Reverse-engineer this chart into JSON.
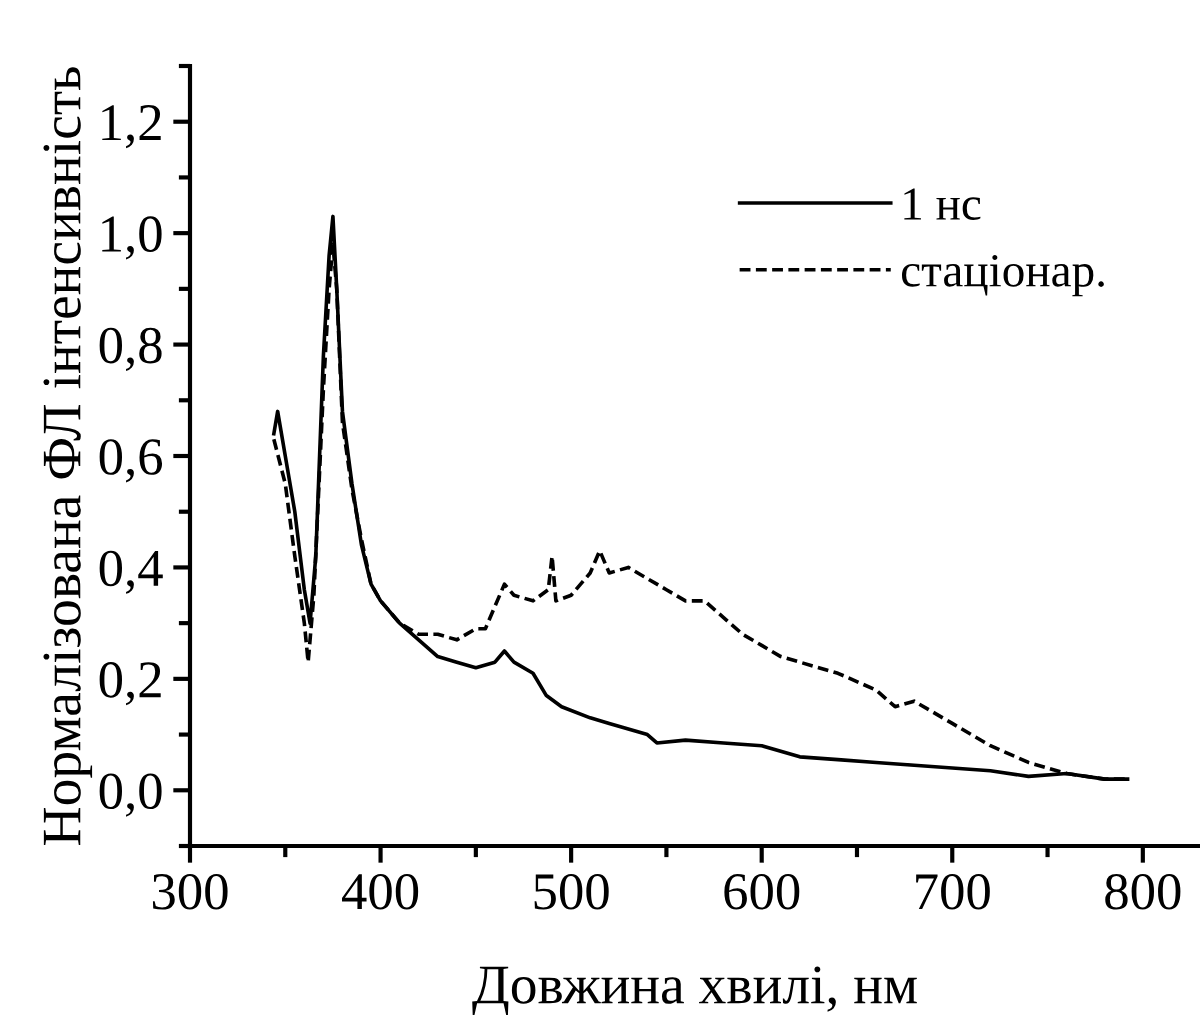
{
  "chart_data": {
    "type": "line",
    "xlabel": "Довжина хвилі, нм",
    "ylabel": "Нормалізована ФЛ інтенсивність",
    "xlim": [
      300,
      830
    ],
    "ylim": [
      -0.1,
      1.3
    ],
    "xticks": [
      300,
      400,
      500,
      600,
      700,
      800
    ],
    "yticks": [
      {
        "value": 0,
        "label": "0,0"
      },
      {
        "value": 0.2,
        "label": "0,2"
      },
      {
        "value": 0.4,
        "label": "0,4"
      },
      {
        "value": 0.6,
        "label": "0,6"
      },
      {
        "value": 0.8,
        "label": "0,8"
      },
      {
        "value": 1.0,
        "label": "1,0"
      },
      {
        "value": 1.2,
        "label": "1,2"
      }
    ],
    "legend": "top right",
    "grid": false,
    "series": [
      {
        "name": "1 нс",
        "color": "#000000",
        "line_style": "solid",
        "x": [
          344,
          346,
          350,
          355,
          360,
          363,
          366,
          370,
          373,
          375,
          377,
          380,
          385,
          390,
          395,
          400,
          410,
          420,
          430,
          440,
          450,
          460,
          465,
          470,
          480,
          487,
          495,
          510,
          520,
          540,
          545,
          560,
          580,
          600,
          620,
          640,
          660,
          680,
          700,
          720,
          740,
          760,
          780,
          792
        ],
        "values": [
          0.64,
          0.68,
          0.6,
          0.5,
          0.36,
          0.3,
          0.42,
          0.78,
          0.96,
          1.03,
          0.9,
          0.68,
          0.55,
          0.44,
          0.37,
          0.34,
          0.3,
          0.27,
          0.24,
          0.23,
          0.22,
          0.23,
          0.25,
          0.23,
          0.21,
          0.17,
          0.15,
          0.13,
          0.12,
          0.1,
          0.085,
          0.09,
          0.085,
          0.08,
          0.06,
          0.055,
          0.05,
          0.045,
          0.04,
          0.035,
          0.025,
          0.03,
          0.02,
          0.02
        ]
      },
      {
        "name": "стаціонар.",
        "color": "#000000",
        "line_style": "dashed",
        "x": [
          344,
          350,
          355,
          360,
          362,
          365,
          370,
          373,
          375,
          377,
          380,
          385,
          390,
          395,
          400,
          410,
          420,
          430,
          440,
          450,
          455,
          460,
          465,
          470,
          480,
          488,
          490,
          492,
          500,
          510,
          515,
          520,
          530,
          540,
          550,
          560,
          570,
          580,
          590,
          600,
          610,
          620,
          640,
          660,
          670,
          680,
          690,
          700,
          720,
          740,
          760,
          780,
          792
        ],
        "values": [
          0.63,
          0.55,
          0.42,
          0.3,
          0.23,
          0.35,
          0.72,
          0.9,
          0.98,
          0.9,
          0.66,
          0.54,
          0.45,
          0.37,
          0.34,
          0.3,
          0.28,
          0.28,
          0.27,
          0.29,
          0.29,
          0.33,
          0.37,
          0.35,
          0.34,
          0.36,
          0.42,
          0.34,
          0.35,
          0.39,
          0.43,
          0.39,
          0.4,
          0.38,
          0.36,
          0.34,
          0.34,
          0.31,
          0.28,
          0.26,
          0.24,
          0.23,
          0.21,
          0.18,
          0.15,
          0.16,
          0.14,
          0.12,
          0.08,
          0.05,
          0.03,
          0.02,
          0.02
        ]
      }
    ]
  }
}
